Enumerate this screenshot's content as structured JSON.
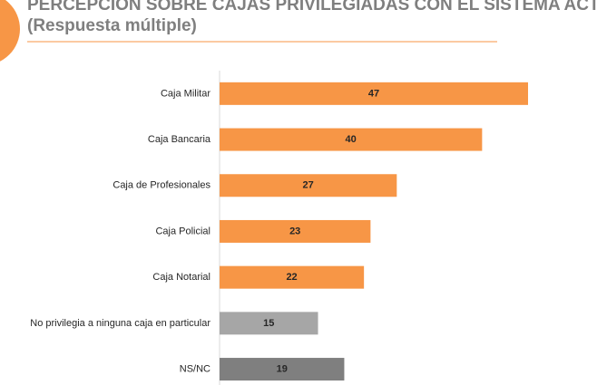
{
  "chart_data": {
    "type": "bar",
    "orientation": "horizontal",
    "title": "PERCEPCIÓN SOBRE CAJAS PRIVILEGIADAS CON EL SISTEMA ACTUAL",
    "subtitle": "(Respuesta múltiple)",
    "categories": [
      "Caja Militar",
      "Caja Bancaria",
      "Caja de Profesionales",
      "Caja Policial",
      "Caja Notarial",
      "No privilegia a ninguna caja en particular",
      "NS/NC"
    ],
    "values": [
      47,
      40,
      27,
      23,
      22,
      15,
      19
    ],
    "colors": [
      "#f79646",
      "#f79646",
      "#f79646",
      "#f79646",
      "#f79646",
      "#a6a6a6",
      "#7f7f7f"
    ]
  }
}
